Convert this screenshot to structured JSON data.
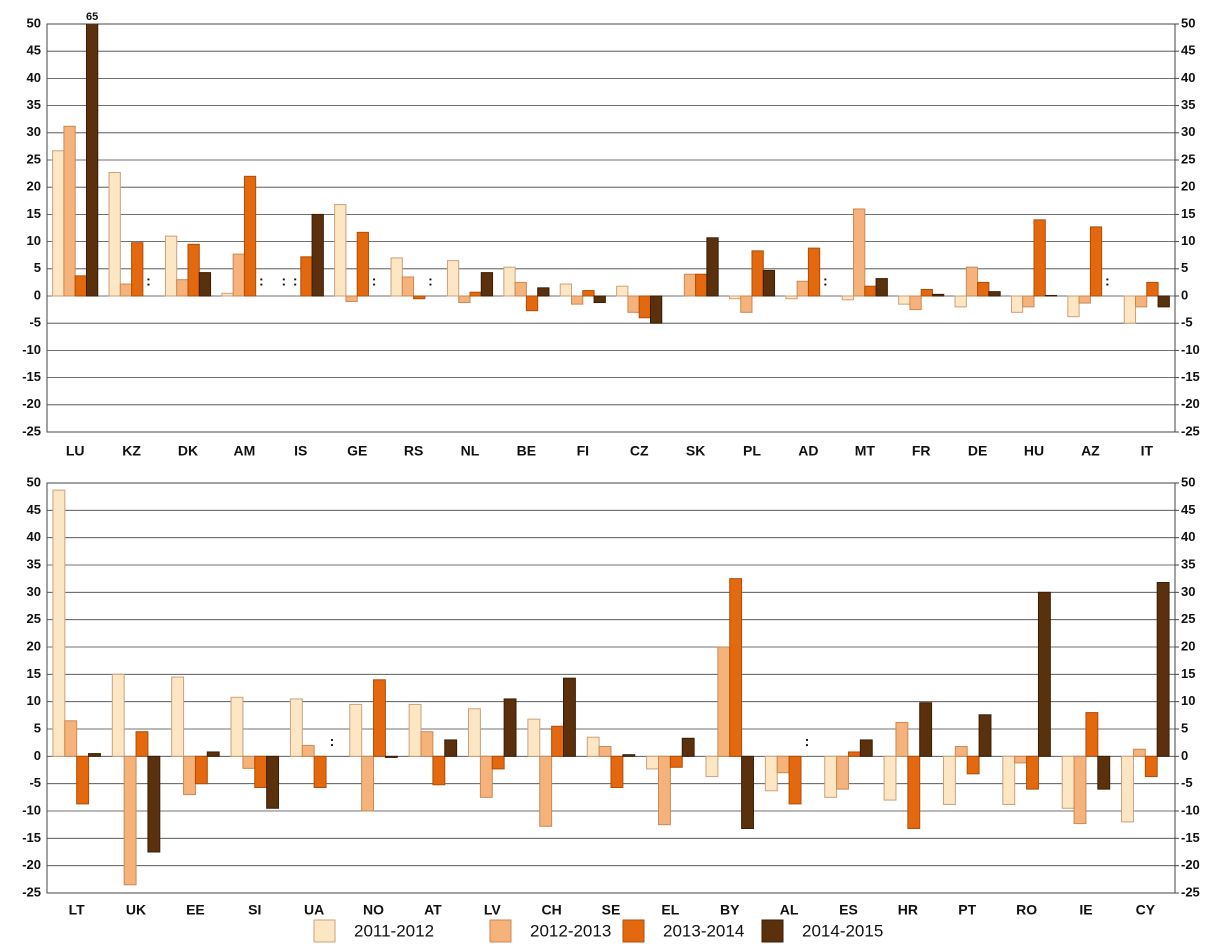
{
  "series": [
    {
      "name": "2011-2012",
      "color": "#fde6c4"
    },
    {
      "name": "2012-2013",
      "color": "#f5b27a"
    },
    {
      "name": "2013-2014",
      "color": "#e4680e"
    },
    {
      "name": "2014-2015",
      "color": "#5a300d"
    }
  ],
  "chart_data": [
    {
      "type": "bar",
      "categories": [
        "LU",
        "KZ",
        "DK",
        "AM",
        "IS",
        "GE",
        "RS",
        "NL",
        "BE",
        "FI",
        "CZ",
        "SK",
        "PL",
        "AD",
        "MT",
        "FR",
        "DE",
        "HU",
        "AZ",
        "IT"
      ],
      "series": [
        {
          "values": [
            26.7,
            22.7,
            11,
            0.5,
            null,
            16.8,
            7,
            6.5,
            5.3,
            2.2,
            1.8,
            0,
            -0.5,
            -0.5,
            -0.7,
            -1.5,
            -2,
            -3,
            -3.8,
            -5
          ],
          "value_labels": [
            null,
            null,
            null,
            null,
            ":",
            null,
            null,
            null,
            null,
            null,
            null,
            null,
            null,
            null,
            null,
            null,
            null,
            null,
            null,
            null
          ]
        },
        {
          "values": [
            31.2,
            2.2,
            3,
            7.7,
            null,
            -1,
            3.5,
            -1.2,
            2.5,
            -1.5,
            -3,
            4,
            -3,
            2.7,
            16,
            -2.5,
            5.3,
            -2,
            -1.3,
            -2
          ],
          "value_labels": [
            null,
            null,
            null,
            null,
            ":",
            null,
            null,
            null,
            null,
            null,
            null,
            null,
            null,
            null,
            null,
            null,
            null,
            null,
            null,
            null
          ]
        },
        {
          "values": [
            3.7,
            9.8,
            9.5,
            22,
            7.2,
            11.7,
            -0.5,
            0.7,
            -2.7,
            1,
            -4,
            4,
            8.3,
            8.8,
            1.8,
            1.2,
            2.5,
            14,
            12.7,
            2.5
          ]
        },
        {
          "values": [
            65,
            null,
            4.3,
            null,
            15,
            null,
            null,
            4.3,
            1.5,
            -1.2,
            -5,
            10.7,
            4.7,
            null,
            3.2,
            0.3,
            0.8,
            0.1,
            null,
            -2
          ],
          "value_labels": [
            "65",
            ":",
            null,
            ":",
            null,
            ":",
            ":",
            null,
            null,
            null,
            null,
            null,
            null,
            ":",
            null,
            null,
            null,
            null,
            ":",
            null
          ]
        }
      ],
      "ylim": [
        -25,
        50
      ],
      "yticks": [
        -25,
        -20,
        -15,
        -10,
        -5,
        0,
        5,
        10,
        15,
        20,
        25,
        30,
        35,
        40,
        45,
        50
      ],
      "y2lim": [
        -25,
        50
      ],
      "y2ticks": [
        -25,
        -20,
        -15,
        -10,
        -5,
        0,
        5,
        10,
        15,
        20,
        25,
        30,
        35,
        40,
        45,
        50
      ],
      "grid": true
    },
    {
      "type": "bar",
      "categories": [
        "LT",
        "UK",
        "EE",
        "SI",
        "UA",
        "NO",
        "AT",
        "LV",
        "CH",
        "SE",
        "EL",
        "BY",
        "AL",
        "ES",
        "HR",
        "PT",
        "RO",
        "IE",
        "CY"
      ],
      "series": [
        {
          "values": [
            48.7,
            15,
            14.5,
            10.8,
            10.5,
            9.5,
            9.5,
            8.7,
            6.8,
            3.5,
            -2.3,
            -3.7,
            -6.3,
            -7.5,
            -8,
            -8.8,
            -8.8,
            -9.5,
            -12
          ]
        },
        {
          "values": [
            6.5,
            -23.5,
            -7,
            -2.2,
            2,
            -10,
            4.5,
            -7.5,
            -12.8,
            1.8,
            -12.5,
            20,
            -3,
            -6,
            6.2,
            1.8,
            -1.2,
            -12.3,
            1.3
          ]
        },
        {
          "values": [
            -8.7,
            4.5,
            -5,
            -5.7,
            -5.7,
            14,
            -5.2,
            -2.3,
            5.5,
            -5.7,
            -2,
            32.5,
            -8.7,
            0.8,
            -13.2,
            -3.2,
            -6,
            8,
            -3.7
          ]
        },
        {
          "values": [
            0.5,
            -17.5,
            0.8,
            -9.5,
            null,
            -0.2,
            3,
            10.5,
            14.3,
            0.3,
            3.3,
            -13.2,
            null,
            3,
            9.8,
            7.6,
            30,
            -6,
            31.8
          ],
          "value_labels": [
            null,
            null,
            null,
            null,
            ":",
            null,
            null,
            null,
            null,
            null,
            null,
            null,
            ":",
            null,
            null,
            null,
            null,
            null,
            null
          ]
        }
      ],
      "ylim": [
        -25,
        50
      ],
      "yticks": [
        -25,
        -20,
        -15,
        -10,
        -5,
        0,
        5,
        10,
        15,
        20,
        25,
        30,
        35,
        40,
        45,
        50
      ],
      "y2lim": [
        -25,
        50
      ],
      "y2ticks": [
        -25,
        -20,
        -15,
        -10,
        -5,
        0,
        5,
        10,
        15,
        20,
        25,
        30,
        35,
        40,
        45,
        50
      ],
      "grid": true
    }
  ]
}
